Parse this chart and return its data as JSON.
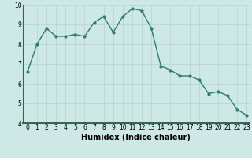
{
  "x": [
    0,
    1,
    2,
    3,
    4,
    5,
    6,
    7,
    8,
    9,
    10,
    11,
    12,
    13,
    14,
    15,
    16,
    17,
    18,
    19,
    20,
    21,
    22,
    23
  ],
  "y": [
    6.6,
    8.0,
    8.8,
    8.4,
    8.4,
    8.5,
    8.4,
    9.1,
    9.4,
    8.6,
    9.4,
    9.8,
    9.7,
    8.8,
    6.9,
    6.7,
    6.4,
    6.4,
    6.2,
    5.5,
    5.6,
    5.4,
    4.7,
    4.4
  ],
  "xlabel": "Humidex (Indice chaleur)",
  "ylim": [
    4,
    10
  ],
  "xlim": [
    -0.5,
    23.3
  ],
  "yticks": [
    4,
    5,
    6,
    7,
    8,
    9,
    10
  ],
  "xticks": [
    0,
    1,
    2,
    3,
    4,
    5,
    6,
    7,
    8,
    9,
    10,
    11,
    12,
    13,
    14,
    15,
    16,
    17,
    18,
    19,
    20,
    21,
    22,
    23
  ],
  "line_color": "#2d7d6e",
  "bg_color": "#cde8e5",
  "grid_color": "#b8d8d4",
  "marker": "o",
  "marker_size": 2.0,
  "line_width": 1.0,
  "xlabel_fontsize": 7,
  "tick_fontsize": 5.5,
  "bottom_bar_color": "#4a8a7a"
}
